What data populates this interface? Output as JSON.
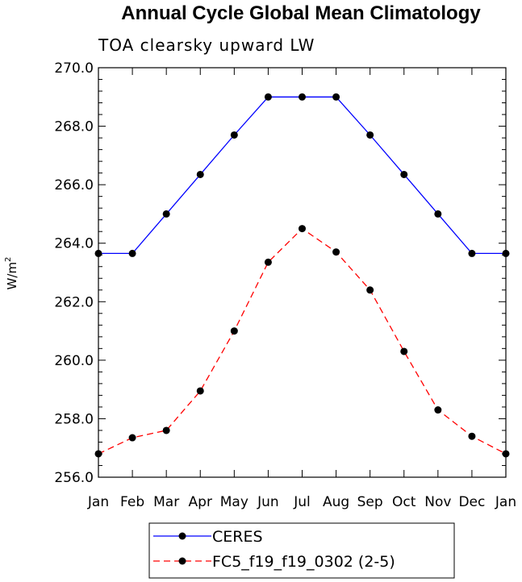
{
  "chart_data": {
    "type": "line",
    "title": "Annual Cycle Global Mean Climatology",
    "subtitle": "TOA clearsky upward LW",
    "xlabel": "",
    "ylabel": "W/m",
    "ylabel_superscript": "2",
    "categories": [
      "Jan",
      "Feb",
      "Mar",
      "Apr",
      "May",
      "Jun",
      "Jul",
      "Aug",
      "Sep",
      "Oct",
      "Nov",
      "Dec",
      "Jan"
    ],
    "ylim": [
      256.0,
      270.0
    ],
    "yticks": [
      "256.0",
      "258.0",
      "260.0",
      "262.0",
      "264.0",
      "266.0",
      "268.0",
      "270.0"
    ],
    "series": [
      {
        "name": "CERES",
        "color": "#0000ff",
        "dash": "solid",
        "values": [
          263.65,
          263.65,
          265.0,
          266.35,
          267.7,
          269.0,
          269.0,
          269.0,
          267.7,
          266.35,
          265.0,
          263.65,
          263.65
        ]
      },
      {
        "name": "FC5_f19_f19_0302 (2-5)",
        "color": "#ff0000",
        "dash": "dashed",
        "values": [
          256.8,
          257.35,
          257.6,
          258.95,
          261.0,
          263.35,
          264.5,
          263.7,
          262.4,
          260.3,
          258.3,
          257.4,
          256.8
        ]
      }
    ],
    "legend_position": "bottom"
  }
}
